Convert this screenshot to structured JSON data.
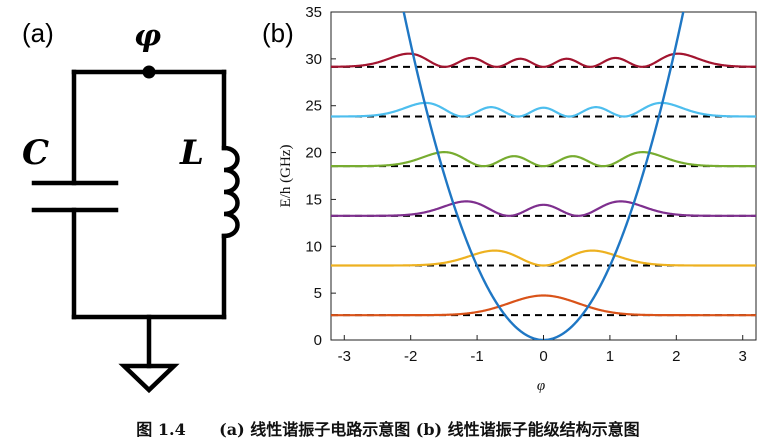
{
  "panel_a": {
    "label": "(a)",
    "node_label": "φ",
    "capacitor_label": "C",
    "inductor_label": "L"
  },
  "panel_b": {
    "label": "(b)"
  },
  "caption": "图 1.4      (a) 线性谐振子电路示意图 (b) 线性谐振子能级结构示意图",
  "colors": {
    "potential": "#1f77c4",
    "baseline": "#000000",
    "levels": [
      "#d95319",
      "#edb120",
      "#7e2f8e",
      "#77ac30",
      "#4dbeee",
      "#a2142f"
    ]
  },
  "chart_data": {
    "type": "line",
    "xlabel": "φ",
    "ylabel": "E/h (GHz)",
    "xlim": [
      -3.2,
      3.2
    ],
    "ylim": [
      0,
      35
    ],
    "xticks": [
      -3,
      -2,
      -1,
      0,
      1,
      2,
      3
    ],
    "yticks": [
      0,
      5,
      10,
      15,
      20,
      25,
      30,
      35
    ],
    "grid": false,
    "potential": {
      "shape": "parabola",
      "coefficient": 7.9
    },
    "energy_levels": [
      2.65,
      7.95,
      13.25,
      18.55,
      23.85,
      29.15
    ],
    "wavefunction_amplitude": 1.4,
    "series": [
      {
        "values": [
          2.65
        ]
      },
      {
        "values": [
          7.95
        ]
      },
      {
        "values": [
          13.25
        ]
      },
      {
        "values": [
          18.55
        ]
      },
      {
        "values": [
          23.85
        ]
      },
      {
        "values": [
          29.15
        ]
      }
    ]
  }
}
